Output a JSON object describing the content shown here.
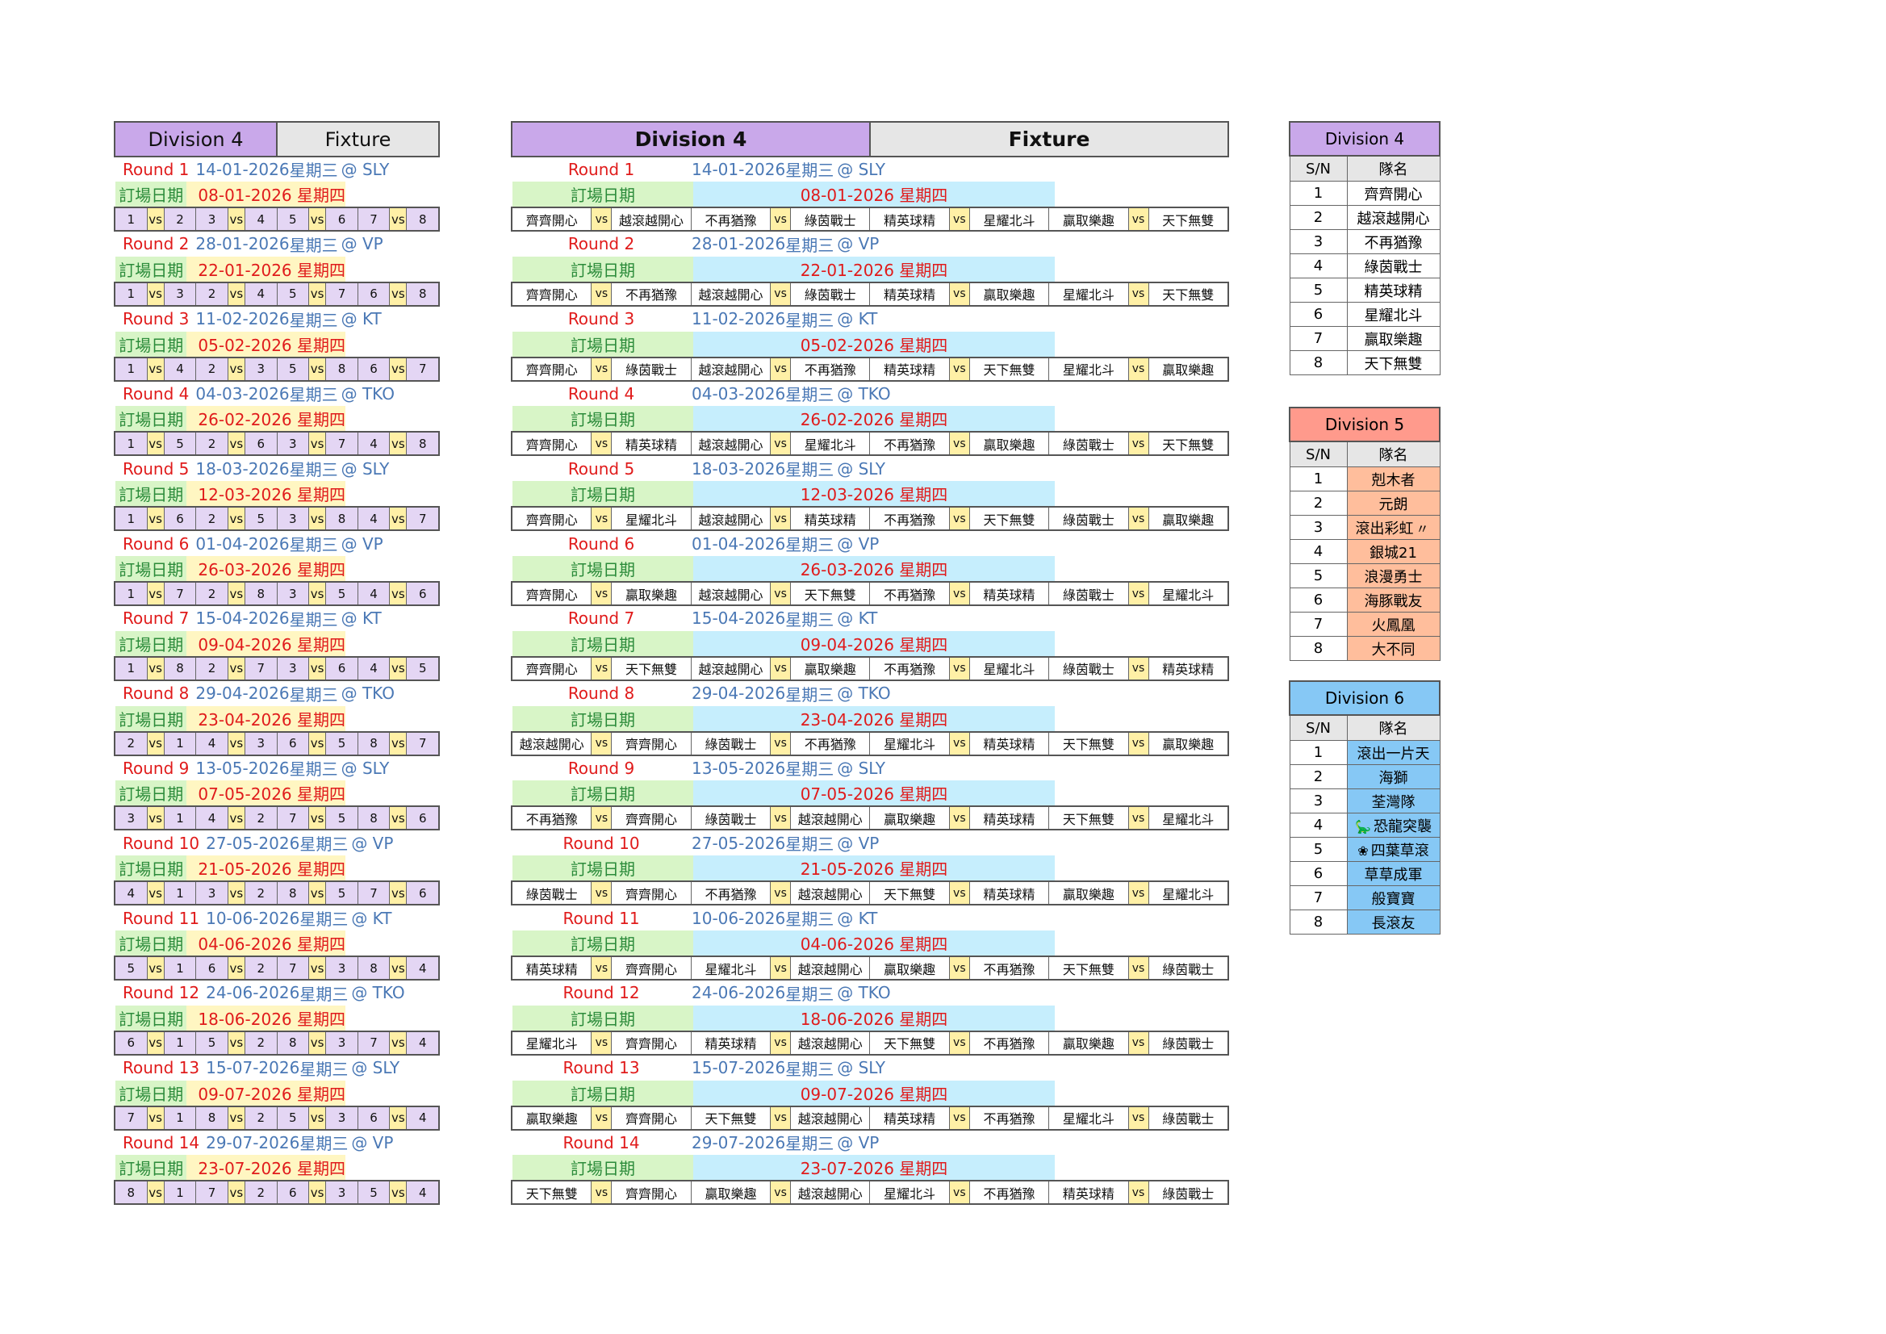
{
  "left_header": {
    "division": "Division 4",
    "fixture": "Fixture"
  },
  "mid_header": {
    "division": "Division 4",
    "fixture": "Fixture"
  },
  "labels": {
    "booking": "訂場日期",
    "vs": "vs"
  },
  "teams4": [
    "齊齊開心",
    "越滾越開心",
    "不再猶豫",
    "綠茵戰士",
    "精英球精",
    "星耀北斗",
    "贏取樂趣",
    "天下無雙"
  ],
  "rounds": [
    {
      "label": "Round 1",
      "date": "14-01-2026",
      "weekday": "星期三",
      "venue": "@ SLY",
      "booking_date": "08-01-2026",
      "booking_weekday": "星期四",
      "pairs": [
        [
          1,
          2
        ],
        [
          3,
          4
        ],
        [
          5,
          6
        ],
        [
          7,
          8
        ]
      ]
    },
    {
      "label": "Round 2",
      "date": "28-01-2026",
      "weekday": "星期三",
      "venue": "@ VP",
      "booking_date": "22-01-2026",
      "booking_weekday": "星期四",
      "pairs": [
        [
          1,
          3
        ],
        [
          2,
          4
        ],
        [
          5,
          7
        ],
        [
          6,
          8
        ]
      ]
    },
    {
      "label": "Round 3",
      "date": "11-02-2026",
      "weekday": "星期三",
      "venue": "@ KT",
      "booking_date": "05-02-2026",
      "booking_weekday": "星期四",
      "pairs": [
        [
          1,
          4
        ],
        [
          2,
          3
        ],
        [
          5,
          8
        ],
        [
          6,
          7
        ]
      ]
    },
    {
      "label": "Round 4",
      "date": "04-03-2026",
      "weekday": "星期三",
      "venue": "@ TKO",
      "booking_date": "26-02-2026",
      "booking_weekday": "星期四",
      "pairs": [
        [
          1,
          5
        ],
        [
          2,
          6
        ],
        [
          3,
          7
        ],
        [
          4,
          8
        ]
      ]
    },
    {
      "label": "Round 5",
      "date": "18-03-2026",
      "weekday": "星期三",
      "venue": "@ SLY",
      "booking_date": "12-03-2026",
      "booking_weekday": "星期四",
      "pairs": [
        [
          1,
          6
        ],
        [
          2,
          5
        ],
        [
          3,
          8
        ],
        [
          4,
          7
        ]
      ]
    },
    {
      "label": "Round 6",
      "date": "01-04-2026",
      "weekday": "星期三",
      "venue": "@ VP",
      "booking_date": "26-03-2026",
      "booking_weekday": "星期四",
      "pairs": [
        [
          1,
          7
        ],
        [
          2,
          8
        ],
        [
          3,
          5
        ],
        [
          4,
          6
        ]
      ]
    },
    {
      "label": "Round 7",
      "date": "15-04-2026",
      "weekday": "星期三",
      "venue": "@ KT",
      "booking_date": "09-04-2026",
      "booking_weekday": "星期四",
      "pairs": [
        [
          1,
          8
        ],
        [
          2,
          7
        ],
        [
          3,
          6
        ],
        [
          4,
          5
        ]
      ]
    },
    {
      "label": "Round 8",
      "date": "29-04-2026",
      "weekday": "星期三",
      "venue": "@ TKO",
      "booking_date": "23-04-2026",
      "booking_weekday": "星期四",
      "pairs": [
        [
          2,
          1
        ],
        [
          4,
          3
        ],
        [
          6,
          5
        ],
        [
          8,
          7
        ]
      ]
    },
    {
      "label": "Round 9",
      "date": "13-05-2026",
      "weekday": "星期三",
      "venue": "@ SLY",
      "booking_date": "07-05-2026",
      "booking_weekday": "星期四",
      "pairs": [
        [
          3,
          1
        ],
        [
          4,
          2
        ],
        [
          7,
          5
        ],
        [
          8,
          6
        ]
      ]
    },
    {
      "label": "Round 10",
      "date": "27-05-2026",
      "weekday": "星期三",
      "venue": "@ VP",
      "booking_date": "21-05-2026",
      "booking_weekday": "星期四",
      "pairs": [
        [
          4,
          1
        ],
        [
          3,
          2
        ],
        [
          8,
          5
        ],
        [
          7,
          6
        ]
      ]
    },
    {
      "label": "Round 11",
      "date": "10-06-2026",
      "weekday": "星期三",
      "venue": "@ KT",
      "booking_date": "04-06-2026",
      "booking_weekday": "星期四",
      "pairs": [
        [
          5,
          1
        ],
        [
          6,
          2
        ],
        [
          7,
          3
        ],
        [
          8,
          4
        ]
      ]
    },
    {
      "label": "Round 12",
      "date": "24-06-2026",
      "weekday": "星期三",
      "venue": "@ TKO",
      "booking_date": "18-06-2026",
      "booking_weekday": "星期四",
      "pairs": [
        [
          6,
          1
        ],
        [
          5,
          2
        ],
        [
          8,
          3
        ],
        [
          7,
          4
        ]
      ]
    },
    {
      "label": "Round 13",
      "date": "15-07-2026",
      "weekday": "星期三",
      "venue": "@ SLY",
      "booking_date": "09-07-2026",
      "booking_weekday": "星期四",
      "pairs": [
        [
          7,
          1
        ],
        [
          8,
          2
        ],
        [
          5,
          3
        ],
        [
          6,
          4
        ]
      ]
    },
    {
      "label": "Round 14",
      "date": "29-07-2026",
      "weekday": "星期三",
      "venue": "@ VP",
      "booking_date": "23-07-2026",
      "booking_weekday": "星期四",
      "pairs": [
        [
          8,
          1
        ],
        [
          7,
          2
        ],
        [
          6,
          3
        ],
        [
          5,
          4
        ]
      ]
    }
  ],
  "division_tables": [
    {
      "title": "Division  4",
      "color": "#c9a8ea",
      "cell_color": "#ffffff",
      "sn_header": "S/N",
      "name_header": "隊名",
      "rows": [
        {
          "sn": "1",
          "name": "齊齊開心"
        },
        {
          "sn": "2",
          "name": "越滾越開心"
        },
        {
          "sn": "3",
          "name": "不再猶豫"
        },
        {
          "sn": "4",
          "name": "綠茵戰士"
        },
        {
          "sn": "5",
          "name": "精英球精"
        },
        {
          "sn": "6",
          "name": "星耀北斗"
        },
        {
          "sn": "7",
          "name": "贏取樂趣"
        },
        {
          "sn": "8",
          "name": "天下無雙"
        }
      ]
    },
    {
      "title": "Division  5",
      "color": "#ff9a8c",
      "cell_color": "#ffbe9c",
      "sn_header": "S/N",
      "name_header": "隊名",
      "rows": [
        {
          "sn": "1",
          "name": "剋木者"
        },
        {
          "sn": "2",
          "name": "元朗"
        },
        {
          "sn": "3",
          "name": "滾出彩虹",
          "icon": "rainbow-icon",
          "glyph": "〃"
        },
        {
          "sn": "4",
          "name": "銀城21"
        },
        {
          "sn": "5",
          "name": "浪漫勇士"
        },
        {
          "sn": "6",
          "name": "海豚戰友"
        },
        {
          "sn": "7",
          "name": "火鳳凰"
        },
        {
          "sn": "8",
          "name": "大不同"
        }
      ]
    },
    {
      "title": "Division  6",
      "color": "#86c8f5",
      "cell_color": "#86c8f5",
      "sn_header": "S/N",
      "name_header": "隊名",
      "rows": [
        {
          "sn": "1",
          "name": "滾出一片天"
        },
        {
          "sn": "2",
          "name": "海獅"
        },
        {
          "sn": "3",
          "name": "荃灣隊"
        },
        {
          "sn": "4",
          "name": "恐龍突襲",
          "icon": "dinosaur-icon",
          "glyph": "🦕"
        },
        {
          "sn": "5",
          "name": "四葉草滾",
          "icon": "clover-icon",
          "glyph": "❀"
        },
        {
          "sn": "6",
          "name": "草草成軍"
        },
        {
          "sn": "7",
          "name": "般寶寶"
        },
        {
          "sn": "8",
          "name": "長滾友"
        }
      ]
    }
  ]
}
